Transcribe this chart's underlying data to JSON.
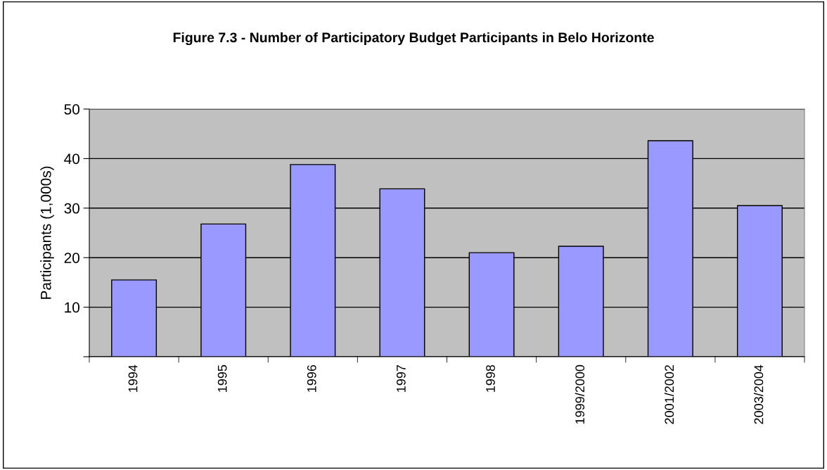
{
  "chart_data": {
    "type": "bar",
    "title": "Figure 7.3 - Number of Participatory Budget Participants in Belo Horizonte",
    "ylabel": "Participants (1,000s)",
    "categories": [
      "1994",
      "1995",
      "1996",
      "1997",
      "1998",
      "1999/2000",
      "2001/2002",
      "2003/2004"
    ],
    "values": [
      15.5,
      26.8,
      38.8,
      33.9,
      21.0,
      22.3,
      43.6,
      30.5
    ],
    "color": "#9999ff",
    "ylim": [
      0,
      50
    ],
    "yticks": [
      {
        "value": 0,
        "label": null
      },
      10,
      20,
      30,
      40,
      50
    ],
    "grid": "y",
    "legend": false
  }
}
